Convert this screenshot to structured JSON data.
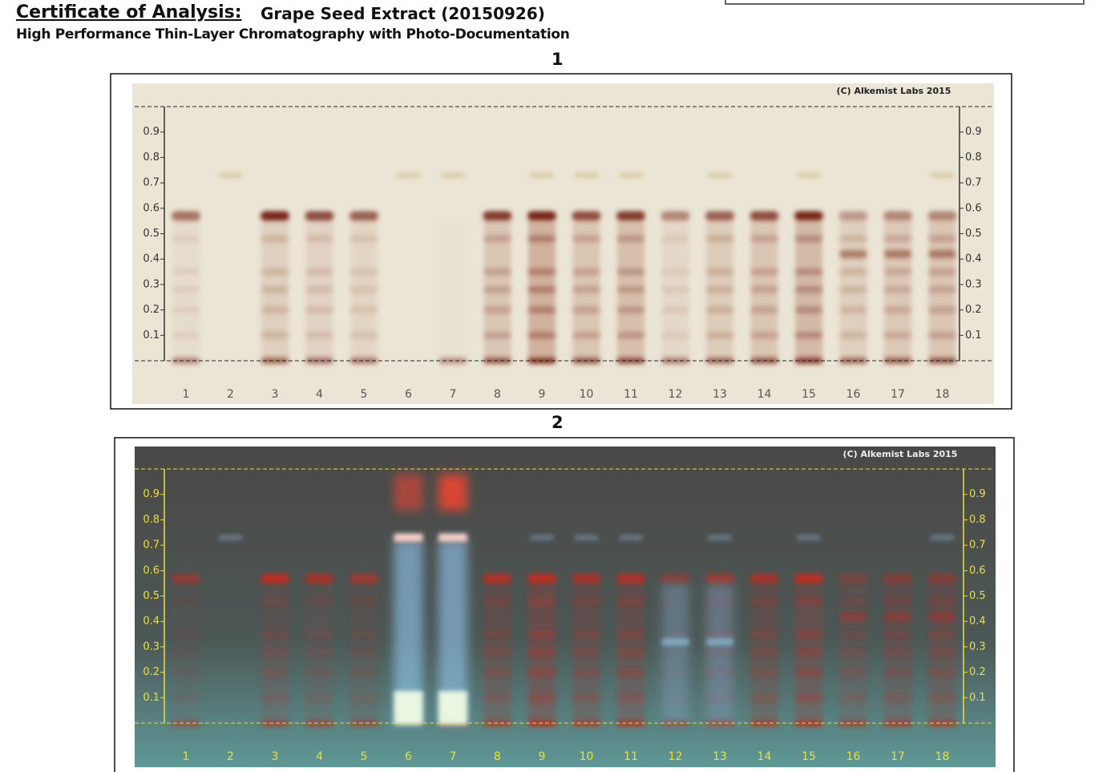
{
  "header": {
    "title_label": "Certificate of Analysis:",
    "title_product": "Grape Seed Extract (20150926)",
    "subtitle": "High Performance Thin-Layer Chromatography with Photo-Documentation"
  },
  "plates": [
    {
      "label": "1",
      "copyright": "(C) Alkemist Labs 2015",
      "rf_ticks": [
        0.1,
        0.2,
        0.3,
        0.4,
        0.5,
        0.6,
        0.7,
        0.8,
        0.9
      ],
      "lanes": [
        "1",
        "2",
        "3",
        "4",
        "5",
        "6",
        "7",
        "8",
        "9",
        "10",
        "11",
        "12",
        "13",
        "14",
        "15",
        "16",
        "17",
        "18"
      ]
    },
    {
      "label": "2",
      "copyright": "(C) Alkemist Labs 2015",
      "rf_ticks": [
        0.1,
        0.2,
        0.3,
        0.4,
        0.5,
        0.6,
        0.7,
        0.8,
        0.9
      ],
      "lanes": [
        "1",
        "2",
        "3",
        "4",
        "5",
        "6",
        "7",
        "8",
        "9",
        "10",
        "11",
        "12",
        "13",
        "14",
        "15",
        "16",
        "17",
        "18"
      ]
    }
  ]
}
